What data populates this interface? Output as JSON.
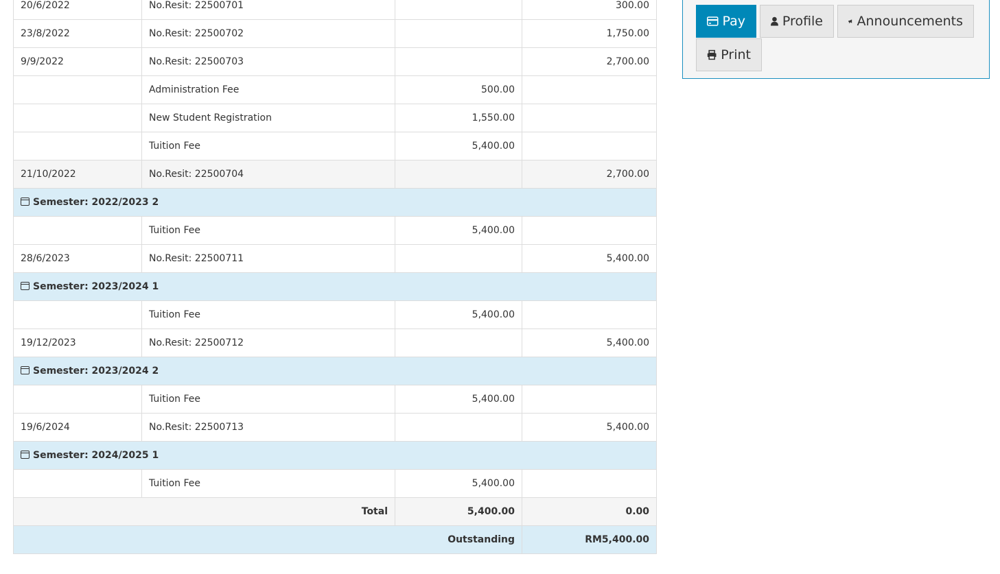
{
  "actions": {
    "pay": "Pay",
    "profile": "Profile",
    "announcements": "Announcements",
    "print": "Print",
    "accent": "#0088b8"
  },
  "rows": [
    {
      "type": "item",
      "date": "20/6/2022",
      "desc": "No.Resit: 22500701",
      "debit": "",
      "credit": "300.00"
    },
    {
      "type": "item",
      "date": "23/8/2022",
      "desc": "No.Resit: 22500702",
      "debit": "",
      "credit": "1,750.00"
    },
    {
      "type": "item",
      "date": "9/9/2022",
      "desc": "No.Resit: 22500703",
      "debit": "",
      "credit": "2,700.00"
    },
    {
      "type": "item",
      "date": "",
      "desc": "Administration Fee",
      "debit": "500.00",
      "credit": ""
    },
    {
      "type": "item",
      "date": "",
      "desc": "New Student Registration",
      "debit": "1,550.00",
      "credit": ""
    },
    {
      "type": "item",
      "date": "",
      "desc": "Tuition Fee",
      "debit": "5,400.00",
      "credit": ""
    },
    {
      "type": "grey",
      "date": "21/10/2022",
      "desc": "No.Resit: 22500704",
      "debit": "",
      "credit": "2,700.00"
    },
    {
      "type": "sem",
      "label": "Semester: 2022/2023 2"
    },
    {
      "type": "item",
      "date": "",
      "desc": "Tuition Fee",
      "debit": "5,400.00",
      "credit": ""
    },
    {
      "type": "item",
      "date": "28/6/2023",
      "desc": "No.Resit: 22500711",
      "debit": "",
      "credit": "5,400.00"
    },
    {
      "type": "sem",
      "label": "Semester: 2023/2024 1"
    },
    {
      "type": "item",
      "date": "",
      "desc": "Tuition Fee",
      "debit": "5,400.00",
      "credit": ""
    },
    {
      "type": "item",
      "date": "19/12/2023",
      "desc": "No.Resit: 22500712",
      "debit": "",
      "credit": "5,400.00"
    },
    {
      "type": "sem",
      "label": "Semester: 2023/2024 2"
    },
    {
      "type": "item",
      "date": "",
      "desc": "Tuition Fee",
      "debit": "5,400.00",
      "credit": ""
    },
    {
      "type": "item",
      "date": "19/6/2024",
      "desc": "No.Resit: 22500713",
      "debit": "",
      "credit": "5,400.00"
    },
    {
      "type": "sem",
      "label": "Semester: 2024/2025 1"
    },
    {
      "type": "item",
      "date": "",
      "desc": "Tuition Fee",
      "debit": "5,400.00",
      "credit": ""
    }
  ],
  "total": {
    "label": "Total",
    "debit": "5,400.00",
    "credit": "0.00"
  },
  "outstanding": {
    "label": "Outstanding",
    "value": "RM5,400.00"
  }
}
